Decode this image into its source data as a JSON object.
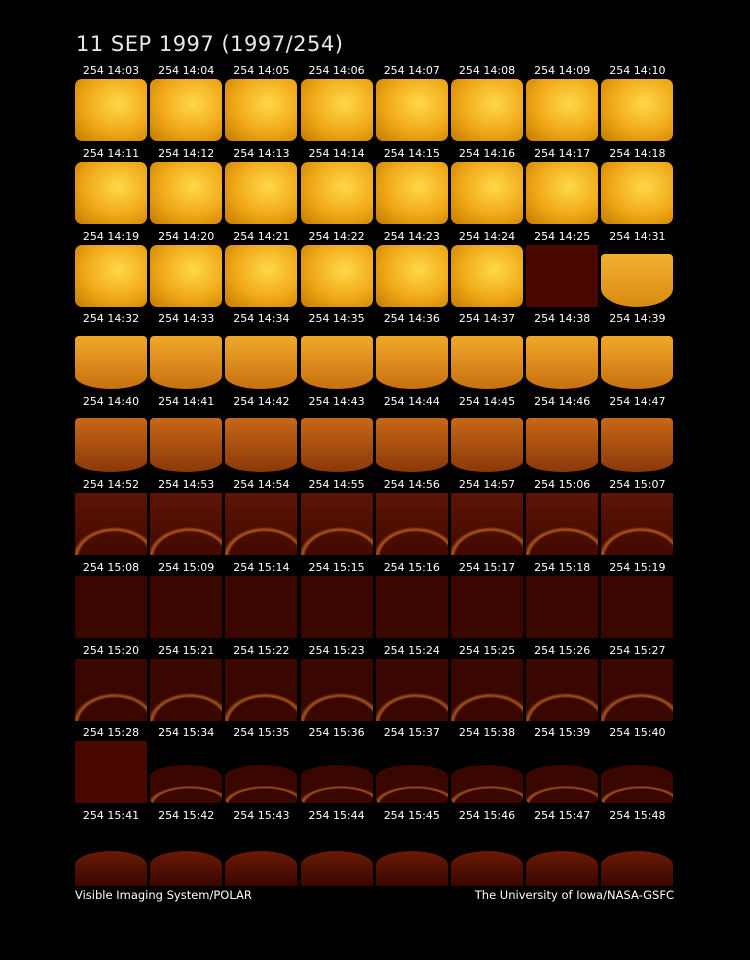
{
  "title": "11 SEP 1997  (1997/254)",
  "frames": [
    [
      "254 14:03",
      "254 14:04",
      "254 14:05",
      "254 14:06",
      "254 14:07",
      "254 14:08",
      "254 14:09",
      "254 14:10"
    ],
    [
      "254 14:11",
      "254 14:12",
      "254 14:13",
      "254 14:14",
      "254 14:15",
      "254 14:16",
      "254 14:17",
      "254 14:18"
    ],
    [
      "254 14:19",
      "254 14:20",
      "254 14:21",
      "254 14:22",
      "254 14:23",
      "254 14:24",
      "254 14:25",
      "254 14:31"
    ],
    [
      "254 14:32",
      "254 14:33",
      "254 14:34",
      "254 14:35",
      "254 14:36",
      "254 14:37",
      "254 14:38",
      "254 14:39"
    ],
    [
      "254 14:40",
      "254 14:41",
      "254 14:42",
      "254 14:43",
      "254 14:44",
      "254 14:45",
      "254 14:46",
      "254 14:47"
    ],
    [
      "254 14:52",
      "254 14:53",
      "254 14:54",
      "254 14:55",
      "254 14:56",
      "254 14:57",
      "254 15:06",
      "254 15:07"
    ],
    [
      "254 15:08",
      "254 15:09",
      "254 15:14",
      "254 15:15",
      "254 15:16",
      "254 15:17",
      "254 15:18",
      "254 15:19"
    ],
    [
      "254 15:20",
      "254 15:21",
      "254 15:22",
      "254 15:23",
      "254 15:24",
      "254 15:25",
      "254 15:26",
      "254 15:27"
    ],
    [
      "254 15:28",
      "254 15:34",
      "254 15:35",
      "254 15:36",
      "254 15:37",
      "254 15:38",
      "254 15:39",
      "254 15:40"
    ],
    [
      "254 15:41",
      "254 15:42",
      "254 15:43",
      "254 15:44",
      "254 15:45",
      "254 15:46",
      "254 15:47",
      "254 15:48"
    ]
  ],
  "footer": {
    "left": "Visible Imaging System/POLAR",
    "right": "The University of Iowa/NASA-GSFC"
  }
}
